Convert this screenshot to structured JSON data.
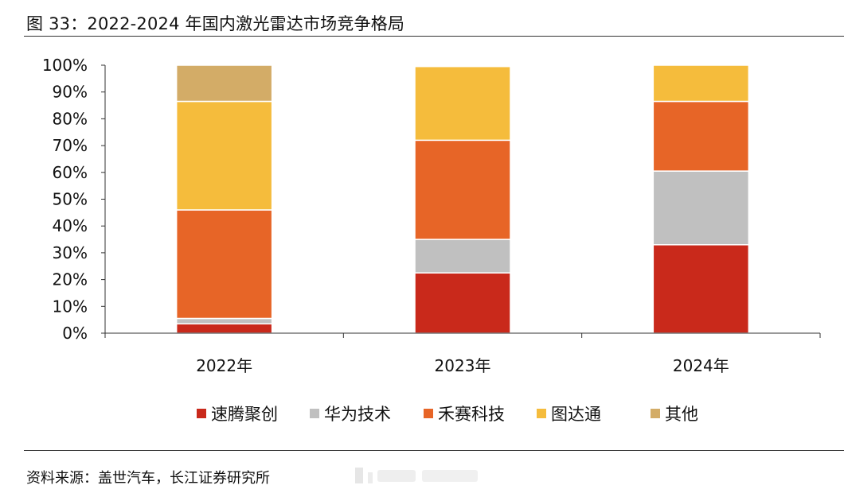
{
  "figure": {
    "title": "图 33：2022-2024 年国内激光雷达市场竞争格局",
    "source": "资料来源：盖世汽车，长江证券研究所"
  },
  "chart_data": {
    "type": "bar",
    "stacked": true,
    "categories": [
      "2022年",
      "2023年",
      "2024年"
    ],
    "series": [
      {
        "name": "速腾聚创",
        "color": "#C9291B",
        "values": [
          3.5,
          22.5,
          33
        ]
      },
      {
        "name": "华为技术",
        "color": "#C0C0C0",
        "values": [
          2,
          12.5,
          27.5
        ]
      },
      {
        "name": "禾赛科技",
        "color": "#E76527",
        "values": [
          40.5,
          37,
          26
        ]
      },
      {
        "name": "图达通",
        "color": "#F5BC3C",
        "values": [
          40.5,
          27.5,
          13.5
        ]
      },
      {
        "name": "其他",
        "color": "#D3AC67",
        "values": [
          13.5,
          0,
          0
        ]
      }
    ],
    "ylim": [
      0,
      100
    ],
    "yticks": [
      "0%",
      "10%",
      "20%",
      "30%",
      "40%",
      "50%",
      "60%",
      "70%",
      "80%",
      "90%",
      "100%"
    ],
    "legend_position": "bottom",
    "grid": false
  }
}
